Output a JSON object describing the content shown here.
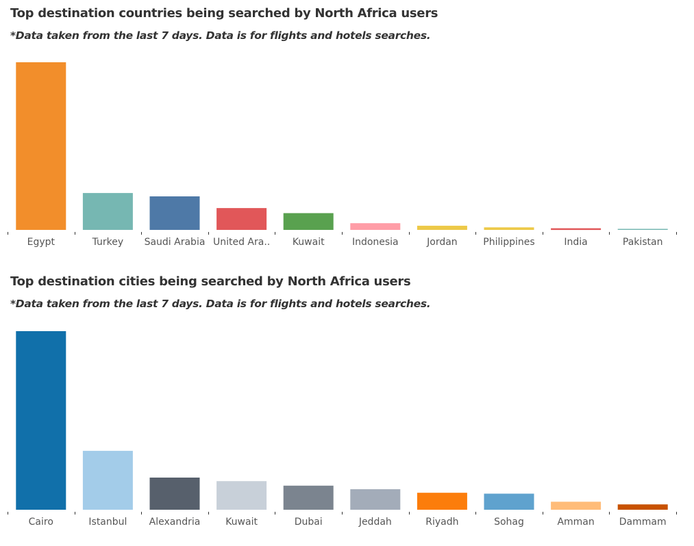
{
  "chart_data": [
    {
      "type": "bar",
      "title": "Top destination countries being searched by North Africa users",
      "subtitle": "*Data taken from the last 7 days. Data is for flights and hotels searches.",
      "categories": [
        "Egypt",
        "Turkey",
        "Saudi Arabia",
        "United Ara..",
        "Kuwait",
        "Indonesia",
        "Jordan",
        "Philippines",
        "India",
        "Pakistan"
      ],
      "values": [
        100,
        22,
        20,
        13,
        10,
        4,
        2.5,
        1.5,
        1,
        0.5
      ],
      "colors": [
        "#f28e2b",
        "#76b7b2",
        "#4e79a7",
        "#e15759",
        "#59a14f",
        "#ff9da7",
        "#edc948",
        "#edc948",
        "#e15759",
        "#76b7b2"
      ],
      "xlabel": "",
      "ylabel": "",
      "ylim": [
        0,
        100
      ],
      "grid": false
    },
    {
      "type": "bar",
      "title": "Top destination cities being searched by North Africa users",
      "subtitle": "*Data taken from the last 7 days. Data is for flights and hotels searches.",
      "categories": [
        "Cairo",
        "Istanbul",
        "Alexandria",
        "Kuwait",
        "Dubai",
        "Jeddah",
        "Riyadh",
        "Sohag",
        "Amman",
        "Dammam"
      ],
      "values": [
        100,
        33,
        18,
        16,
        13.5,
        11.5,
        9.5,
        9,
        4.5,
        3
      ],
      "colors": [
        "#1170aa",
        "#a3cce9",
        "#57606c",
        "#c8d0d9",
        "#7b848f",
        "#a3acb9",
        "#fc7d0b",
        "#5fa2ce",
        "#ffbc79",
        "#c85200"
      ],
      "xlabel": "",
      "ylabel": "",
      "ylim": [
        0,
        100
      ],
      "grid": false
    }
  ]
}
